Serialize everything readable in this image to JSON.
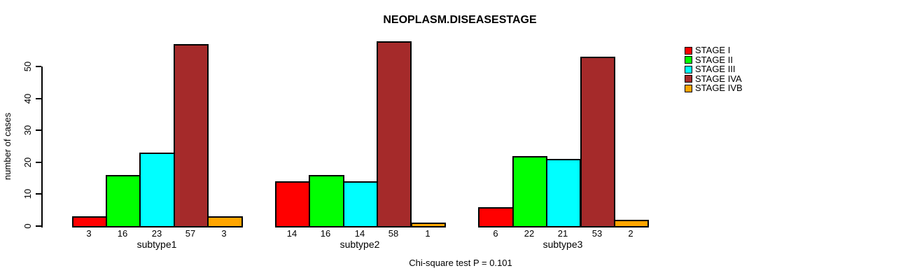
{
  "chart_data": {
    "type": "bar",
    "title": "NEOPLASM.DISEASESTAGE",
    "ylabel": "number of cases",
    "xlabel": "",
    "categories": [
      "subtype1",
      "subtype2",
      "subtype3"
    ],
    "series": [
      {
        "name": "STAGE I",
        "color": "#ff0000",
        "values": [
          3,
          14,
          6
        ]
      },
      {
        "name": "STAGE II",
        "color": "#00ff00",
        "values": [
          16,
          16,
          22
        ]
      },
      {
        "name": "STAGE III",
        "color": "#00ffff",
        "values": [
          23,
          14,
          21
        ]
      },
      {
        "name": "STAGE IVA",
        "color": "#a52a2a",
        "values": [
          57,
          58,
          53
        ]
      },
      {
        "name": "STAGE IVB",
        "color": "#ffa500",
        "values": [
          3,
          1,
          2
        ]
      }
    ],
    "y_ticks": [
      0,
      10,
      20,
      30,
      40,
      50
    ],
    "ylim": [
      0,
      58
    ],
    "grid": false,
    "bar_value_labels_shown": true,
    "legend_position": "right",
    "annotation": "Chi-square test P = 0.101"
  }
}
